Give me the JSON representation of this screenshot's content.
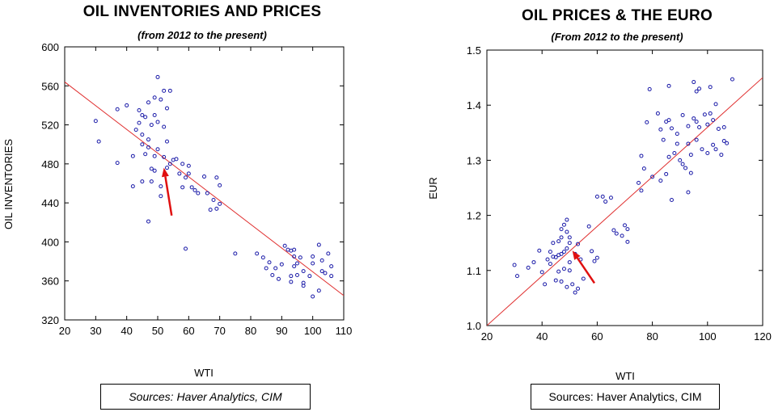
{
  "chart_data": [
    {
      "type": "scatter",
      "title": "OIL INVENTORIES AND PRICES",
      "subtitle": "(from 2012 to the present)",
      "xlabel": "WTI",
      "ylabel": "OIL INVENTORIES",
      "xlim": [
        20,
        110
      ],
      "ylim": [
        320,
        600
      ],
      "xticks": [
        20,
        30,
        40,
        50,
        60,
        70,
        80,
        90,
        100,
        110
      ],
      "yticks": [
        320,
        360,
        400,
        440,
        480,
        520,
        560,
        600
      ],
      "grid": false,
      "fit_line": {
        "x": [
          20,
          110
        ],
        "y": [
          564,
          345
        ]
      },
      "arrow": {
        "from": [
          54.5,
          427
        ],
        "to": [
          52,
          476
        ]
      },
      "source": "Sources:  Haver Analytics, CIM",
      "points": [
        [
          30,
          524
        ],
        [
          31,
          503
        ],
        [
          37,
          481
        ],
        [
          37,
          536
        ],
        [
          40,
          540
        ],
        [
          42,
          488
        ],
        [
          42,
          457
        ],
        [
          43,
          515
        ],
        [
          44,
          535
        ],
        [
          44,
          522
        ],
        [
          45,
          530
        ],
        [
          45,
          510
        ],
        [
          45,
          500
        ],
        [
          45,
          462
        ],
        [
          46,
          528
        ],
        [
          46,
          490
        ],
        [
          47,
          543
        ],
        [
          47,
          505
        ],
        [
          47,
          497
        ],
        [
          47,
          421
        ],
        [
          48,
          520
        ],
        [
          48,
          475
        ],
        [
          48,
          462
        ],
        [
          49,
          548
        ],
        [
          49,
          530
        ],
        [
          49,
          488
        ],
        [
          49,
          473
        ],
        [
          50,
          569
        ],
        [
          50,
          523
        ],
        [
          50,
          495
        ],
        [
          51,
          546
        ],
        [
          51,
          457
        ],
        [
          51,
          447
        ],
        [
          52,
          555
        ],
        [
          52,
          518
        ],
        [
          52,
          487
        ],
        [
          53,
          537
        ],
        [
          53,
          503
        ],
        [
          53,
          476
        ],
        [
          54,
          555
        ],
        [
          54,
          480
        ],
        [
          55,
          484
        ],
        [
          56,
          485
        ],
        [
          57,
          470
        ],
        [
          58,
          480
        ],
        [
          58,
          456
        ],
        [
          59,
          466
        ],
        [
          59,
          393
        ],
        [
          60,
          478
        ],
        [
          60,
          470
        ],
        [
          61,
          456
        ],
        [
          62,
          453
        ],
        [
          63,
          450
        ],
        [
          65,
          467
        ],
        [
          66,
          450
        ],
        [
          67,
          433
        ],
        [
          68,
          443
        ],
        [
          69,
          466
        ],
        [
          69,
          434
        ],
        [
          70,
          458
        ],
        [
          70,
          439
        ],
        [
          75,
          388
        ],
        [
          82,
          388
        ],
        [
          84,
          384
        ],
        [
          85,
          373
        ],
        [
          86,
          379
        ],
        [
          87,
          366
        ],
        [
          88,
          373
        ],
        [
          89,
          362
        ],
        [
          90,
          377
        ],
        [
          91,
          396
        ],
        [
          92,
          392
        ],
        [
          93,
          391
        ],
        [
          93,
          365
        ],
        [
          93,
          359
        ],
        [
          94,
          392
        ],
        [
          94,
          385
        ],
        [
          94,
          375
        ],
        [
          95,
          378
        ],
        [
          95,
          366
        ],
        [
          96,
          384
        ],
        [
          97,
          370
        ],
        [
          97,
          358
        ],
        [
          97,
          355
        ],
        [
          99,
          365
        ],
        [
          100,
          385
        ],
        [
          100,
          378
        ],
        [
          100,
          344
        ],
        [
          102,
          397
        ],
        [
          102,
          350
        ],
        [
          103,
          381
        ],
        [
          103,
          370
        ],
        [
          104,
          368
        ],
        [
          105,
          388
        ],
        [
          106,
          375
        ],
        [
          106,
          365
        ]
      ]
    },
    {
      "type": "scatter",
      "title": "OIL PRICES & THE EURO",
      "subtitle": "(From 2012 to the present)",
      "xlabel": "WTI",
      "ylabel": "EUR",
      "xlim": [
        20,
        120
      ],
      "ylim": [
        1.0,
        1.5
      ],
      "xticks": [
        20,
        40,
        60,
        80,
        100,
        120
      ],
      "yticks": [
        1.0,
        1.1,
        1.2,
        1.3,
        1.4,
        1.5
      ],
      "grid": false,
      "fit_line": {
        "x": [
          20,
          120
        ],
        "y": [
          1.0,
          1.45
        ]
      },
      "arrow": {
        "from": [
          59,
          1.077
        ],
        "to": [
          51,
          1.136
        ]
      },
      "source": "Sources:  Haver Analytics, CIM",
      "points": [
        [
          30,
          1.11
        ],
        [
          31,
          1.09
        ],
        [
          35,
          1.105
        ],
        [
          37,
          1.115
        ],
        [
          39,
          1.136
        ],
        [
          40,
          1.097
        ],
        [
          41,
          1.075
        ],
        [
          42,
          1.12
        ],
        [
          43,
          1.134
        ],
        [
          43,
          1.112
        ],
        [
          44,
          1.15
        ],
        [
          44,
          1.125
        ],
        [
          45,
          1.124
        ],
        [
          45,
          1.082
        ],
        [
          46,
          1.153
        ],
        [
          46,
          1.128
        ],
        [
          46,
          1.098
        ],
        [
          47,
          1.175
        ],
        [
          47,
          1.16
        ],
        [
          47,
          1.13
        ],
        [
          47,
          1.08
        ],
        [
          48,
          1.183
        ],
        [
          48,
          1.134
        ],
        [
          48,
          1.103
        ],
        [
          49,
          1.192
        ],
        [
          49,
          1.17
        ],
        [
          49,
          1.14
        ],
        [
          49,
          1.07
        ],
        [
          50,
          1.16
        ],
        [
          50,
          1.15
        ],
        [
          50,
          1.115
        ],
        [
          50,
          1.1
        ],
        [
          51,
          1.075
        ],
        [
          52,
          1.13
        ],
        [
          52,
          1.06
        ],
        [
          53,
          1.148
        ],
        [
          53,
          1.067
        ],
        [
          54,
          1.12
        ],
        [
          55,
          1.085
        ],
        [
          57,
          1.18
        ],
        [
          58,
          1.135
        ],
        [
          59,
          1.117
        ],
        [
          60,
          1.234
        ],
        [
          60,
          1.123
        ],
        [
          62,
          1.234
        ],
        [
          63,
          1.225
        ],
        [
          65,
          1.232
        ],
        [
          66,
          1.173
        ],
        [
          67,
          1.167
        ],
        [
          69,
          1.163
        ],
        [
          70,
          1.182
        ],
        [
          71,
          1.175
        ],
        [
          71,
          1.152
        ],
        [
          75,
          1.259
        ],
        [
          76,
          1.308
        ],
        [
          76,
          1.245
        ],
        [
          77,
          1.285
        ],
        [
          78,
          1.369
        ],
        [
          79,
          1.429
        ],
        [
          80,
          1.27
        ],
        [
          82,
          1.385
        ],
        [
          83,
          1.356
        ],
        [
          83,
          1.263
        ],
        [
          84,
          1.337
        ],
        [
          85,
          1.37
        ],
        [
          85,
          1.275
        ],
        [
          86,
          1.435
        ],
        [
          86,
          1.373
        ],
        [
          86,
          1.306
        ],
        [
          87,
          1.358
        ],
        [
          87,
          1.228
        ],
        [
          88,
          1.313
        ],
        [
          89,
          1.348
        ],
        [
          89,
          1.33
        ],
        [
          90,
          1.3
        ],
        [
          91,
          1.382
        ],
        [
          91,
          1.293
        ],
        [
          92,
          1.286
        ],
        [
          93,
          1.362
        ],
        [
          93,
          1.33
        ],
        [
          93,
          1.242
        ],
        [
          94,
          1.31
        ],
        [
          94,
          1.277
        ],
        [
          95,
          1.442
        ],
        [
          95,
          1.376
        ],
        [
          96,
          1.425
        ],
        [
          96,
          1.37
        ],
        [
          96,
          1.337
        ],
        [
          97,
          1.43
        ],
        [
          97,
          1.36
        ],
        [
          98,
          1.32
        ],
        [
          99,
          1.383
        ],
        [
          100,
          1.365
        ],
        [
          100,
          1.313
        ],
        [
          101,
          1.433
        ],
        [
          101,
          1.385
        ],
        [
          102,
          1.373
        ],
        [
          102,
          1.328
        ],
        [
          103,
          1.402
        ],
        [
          103,
          1.32
        ],
        [
          104,
          1.357
        ],
        [
          105,
          1.31
        ],
        [
          106,
          1.36
        ],
        [
          106,
          1.335
        ],
        [
          107,
          1.331
        ],
        [
          109,
          1.447
        ]
      ]
    }
  ]
}
